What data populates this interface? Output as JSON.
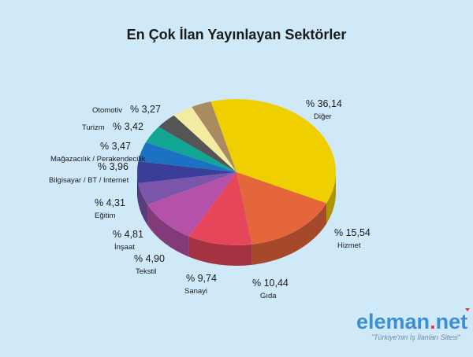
{
  "chart_data": {
    "type": "pie",
    "title": "En Çok İlan Yayınlayan Sektörler",
    "slices": [
      {
        "name": "Diğer",
        "label": "% 36,14",
        "value": 36.14,
        "color": "#f0cf00"
      },
      {
        "name": "Hizmet",
        "label": "% 15,54",
        "value": 15.54,
        "color": "#e5663a"
      },
      {
        "name": "Gıda",
        "label": "% 10,44",
        "value": 10.44,
        "color": "#e5465a"
      },
      {
        "name": "Sanayi",
        "label": "% 9,74",
        "value": 9.74,
        "color": "#b451a8"
      },
      {
        "name": "Tekstil",
        "label": "% 4,90",
        "value": 4.9,
        "color": "#7b55a9"
      },
      {
        "name": "İnşaat",
        "label": "% 4,81",
        "value": 4.81,
        "color": "#3a3e98"
      },
      {
        "name": "Eğitim",
        "label": "% 4,31",
        "value": 4.31,
        "color": "#1b72c3"
      },
      {
        "name": "Bilgisayar / BT / Internet",
        "label": "% 3,96",
        "value": 3.96,
        "color": "#11a593"
      },
      {
        "name": "Mağazacılık / Perakendecilik",
        "label": "% 3,47",
        "value": 3.47,
        "color": "#555555"
      },
      {
        "name": "Turizm",
        "label": "% 3,42",
        "value": 3.42,
        "color": "#f1eca0"
      },
      {
        "name": "Otomotiv",
        "label": "% 3,27",
        "value": 3.27,
        "color": "#aa8a60"
      }
    ]
  },
  "logo": {
    "main": "eleman",
    "dot": ".",
    "suffix": "net",
    "tagline": "\"Türkiye'nin İş İlanları Sitesi\""
  }
}
